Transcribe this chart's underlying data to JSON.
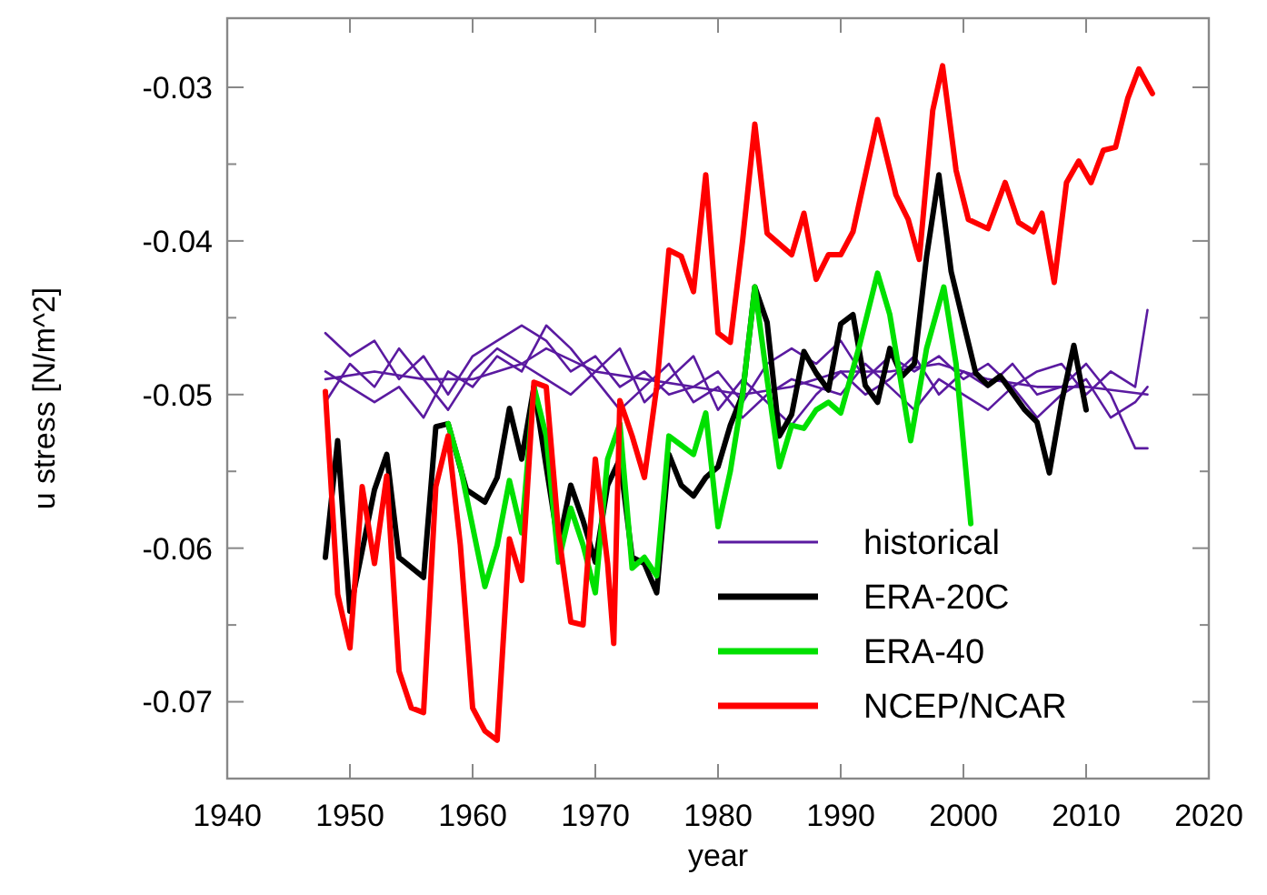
{
  "chart_data": {
    "type": "line",
    "xlabel": "year",
    "ylabel": "u stress [N/m^2]",
    "xlim": [
      1940,
      2020
    ],
    "xticks": [
      1940,
      1950,
      1960,
      1970,
      1980,
      1990,
      2000,
      2010,
      2020
    ],
    "ylim": [
      -0.075,
      -0.0255
    ],
    "yticks": [
      {
        "value": -0.075,
        "label": null
      },
      -0.07,
      {
        "value": -0.065,
        "label": null
      },
      -0.06,
      {
        "value": -0.055,
        "label": null
      },
      -0.05,
      {
        "value": -0.045,
        "label": null
      },
      -0.04,
      {
        "value": -0.035,
        "label": null
      },
      -0.03
    ],
    "grid": false,
    "legend": "bottom right",
    "series": [
      {
        "name": "historical",
        "color": "#5a1aa0",
        "x": [
          1948,
          1950,
          1952,
          1954,
          1956,
          1958,
          1960,
          1962,
          1964,
          1966,
          1968,
          1970,
          1972,
          1974,
          1976,
          1978,
          1980,
          1982,
          1984,
          1986,
          1988,
          1990,
          1992,
          1994,
          1996,
          1998,
          2000,
          2002,
          2004,
          2006,
          2008,
          2010,
          2012,
          2014,
          2015
        ],
        "values": [
          -0.046,
          -0.0475,
          -0.0465,
          -0.049,
          -0.0475,
          -0.05,
          -0.0475,
          -0.0465,
          -0.0455,
          -0.0465,
          -0.0485,
          -0.0475,
          -0.0495,
          -0.0485,
          -0.05,
          -0.0495,
          -0.0485,
          -0.0505,
          -0.048,
          -0.047,
          -0.048,
          -0.0465,
          -0.049,
          -0.0475,
          -0.0485,
          -0.0475,
          -0.049,
          -0.048,
          -0.0495,
          -0.0485,
          -0.048,
          -0.05,
          -0.0485,
          -0.0495,
          -0.0445
        ]
      },
      {
        "color": "#5a1aa0",
        "x": [
          1948,
          1950,
          1952,
          1954,
          1956,
          1958,
          1960,
          1962,
          1964,
          1966,
          1968,
          1970,
          1972,
          1974,
          1976,
          1978,
          1980,
          1982,
          1984,
          1986,
          1988,
          1990,
          1992,
          1994,
          1996,
          1998,
          2000,
          2002,
          2004,
          2006,
          2008,
          2010,
          2012,
          2014,
          2015
        ],
        "values": [
          -0.0485,
          -0.0495,
          -0.0505,
          -0.0495,
          -0.0515,
          -0.0485,
          -0.0495,
          -0.0475,
          -0.0485,
          -0.0455,
          -0.047,
          -0.049,
          -0.051,
          -0.0495,
          -0.048,
          -0.0505,
          -0.0495,
          -0.0515,
          -0.05,
          -0.049,
          -0.0495,
          -0.05,
          -0.048,
          -0.0495,
          -0.051,
          -0.049,
          -0.05,
          -0.051,
          -0.0495,
          -0.0515,
          -0.05,
          -0.049,
          -0.0515,
          -0.0505,
          -0.0495
        ]
      },
      {
        "color": "#5a1aa0",
        "x": [
          1948,
          1950,
          1952,
          1954,
          1956,
          1958,
          1960,
          1962,
          1964,
          1966,
          1968,
          1970,
          1972,
          1974,
          1976,
          1978,
          1980,
          1982,
          1984,
          1986,
          1988,
          1990,
          1992,
          1994,
          1996,
          1998,
          2000,
          2002,
          2004,
          2006,
          2008,
          2010,
          2012,
          2014,
          2015
        ],
        "values": [
          -0.0505,
          -0.048,
          -0.0495,
          -0.047,
          -0.049,
          -0.051,
          -0.0485,
          -0.047,
          -0.048,
          -0.049,
          -0.05,
          -0.0485,
          -0.047,
          -0.0505,
          -0.049,
          -0.0475,
          -0.051,
          -0.049,
          -0.0505,
          -0.052,
          -0.05,
          -0.0485,
          -0.05,
          -0.049,
          -0.0475,
          -0.05,
          -0.0485,
          -0.0495,
          -0.048,
          -0.05,
          -0.0495,
          -0.048,
          -0.05,
          -0.0535,
          -0.0535
        ]
      },
      {
        "color": "#5a1aa0",
        "x": [
          1948,
          1952,
          1956,
          1960,
          1964,
          1966,
          1970,
          1974,
          1978,
          1982,
          1986,
          1990,
          1994,
          1998,
          2002,
          2006,
          2010,
          2015
        ],
        "values": [
          -0.049,
          -0.0485,
          -0.049,
          -0.049,
          -0.048,
          -0.047,
          -0.0485,
          -0.049,
          -0.0495,
          -0.05,
          -0.0495,
          -0.0485,
          -0.0485,
          -0.048,
          -0.049,
          -0.0495,
          -0.0495,
          -0.05
        ]
      },
      {
        "name": "ERA-20C",
        "color": "#000000",
        "x": [
          1948,
          1949,
          1950,
          1952,
          1953,
          1954,
          1956,
          1957,
          1958,
          1959.5,
          1961,
          1962,
          1963,
          1964,
          1965,
          1966,
          1967,
          1968,
          1969,
          1970,
          1971,
          1972,
          1973,
          1974,
          1975,
          1976,
          1977,
          1978,
          1979,
          1980,
          1981,
          1982,
          1983,
          1984,
          1985,
          1986,
          1987,
          1988,
          1989,
          1990,
          1991,
          1992,
          1993,
          1994,
          1995,
          1996,
          1997,
          1998,
          1999,
          2000,
          2001,
          2002,
          2003,
          2004,
          2005,
          2006,
          2007,
          2008,
          2009,
          2010
        ],
        "values": [
          -0.0606,
          -0.053,
          -0.0641,
          -0.0562,
          -0.0539,
          -0.0606,
          -0.0619,
          -0.0521,
          -0.0519,
          -0.0562,
          -0.057,
          -0.0554,
          -0.0509,
          -0.0542,
          -0.0495,
          -0.0547,
          -0.0598,
          -0.0559,
          -0.0582,
          -0.0609,
          -0.0559,
          -0.0542,
          -0.0606,
          -0.061,
          -0.0629,
          -0.0539,
          -0.0559,
          -0.0566,
          -0.0554,
          -0.0547,
          -0.052,
          -0.05,
          -0.043,
          -0.0453,
          -0.0527,
          -0.0513,
          -0.0472,
          -0.0486,
          -0.0497,
          -0.0454,
          -0.0448,
          -0.0494,
          -0.0505,
          -0.047,
          -0.0488,
          -0.048,
          -0.041,
          -0.0357,
          -0.042,
          -0.0453,
          -0.0486,
          -0.0494,
          -0.0488,
          -0.0499,
          -0.051,
          -0.0518,
          -0.0551,
          -0.0505,
          -0.0468,
          -0.051
        ]
      },
      {
        "name": "ERA-40",
        "color": "#00e000",
        "x": [
          1958,
          1959,
          1960,
          1961,
          1962,
          1963,
          1964,
          1965,
          1966,
          1967,
          1968,
          1969,
          1970,
          1971,
          1972,
          1973,
          1974,
          1975,
          1976,
          1977,
          1978,
          1979,
          1980,
          1981,
          1982,
          1983,
          1984,
          1985,
          1986,
          1987,
          1988,
          1989,
          1990,
          1991.5,
          1993,
          1994,
          1995.7,
          1997,
          1998.4,
          1999.4,
          2000.6
        ],
        "values": [
          -0.0519,
          -0.0547,
          -0.0586,
          -0.0625,
          -0.0598,
          -0.0556,
          -0.059,
          -0.0495,
          -0.0527,
          -0.0609,
          -0.0574,
          -0.0598,
          -0.0629,
          -0.0542,
          -0.0519,
          -0.0613,
          -0.0606,
          -0.0618,
          -0.0527,
          -0.0533,
          -0.0539,
          -0.0512,
          -0.0586,
          -0.055,
          -0.05,
          -0.043,
          -0.049,
          -0.0547,
          -0.052,
          -0.0522,
          -0.051,
          -0.0505,
          -0.0512,
          -0.0469,
          -0.0421,
          -0.0448,
          -0.053,
          -0.047,
          -0.043,
          -0.048,
          -0.0584
        ]
      },
      {
        "name": "NCEP/NCAR",
        "color": "#ff0000",
        "x": [
          1948,
          1949,
          1950,
          1951,
          1952,
          1953,
          1954,
          1955,
          1956,
          1957,
          1958,
          1959,
          1960,
          1961,
          1962,
          1963,
          1964,
          1965,
          1966,
          1967,
          1968,
          1969,
          1970,
          1971,
          1971.5,
          1972,
          1973,
          1974,
          1975,
          1976,
          1977,
          1978,
          1979,
          1980,
          1981,
          1982,
          1983,
          1984,
          1986,
          1987,
          1988,
          1989,
          1990,
          1991,
          1993,
          1994.5,
          1995.5,
          1996.4,
          1997.5,
          1998.3,
          1999.4,
          2000.4,
          2002,
          2003.4,
          2004.5,
          2005.7,
          2006.4,
          2007.4,
          2008.4,
          2009.4,
          2010.4,
          2011.4,
          2012.4,
          2013.4,
          2014.3,
          2015.4
        ],
        "values": [
          -0.0498,
          -0.063,
          -0.0665,
          -0.056,
          -0.061,
          -0.0553,
          -0.068,
          -0.0704,
          -0.0707,
          -0.056,
          -0.0527,
          -0.0598,
          -0.0704,
          -0.0719,
          -0.0725,
          -0.0594,
          -0.0621,
          -0.0492,
          -0.0495,
          -0.059,
          -0.0648,
          -0.065,
          -0.0542,
          -0.061,
          -0.0662,
          -0.0504,
          -0.0527,
          -0.0554,
          -0.0495,
          -0.0406,
          -0.041,
          -0.0433,
          -0.0357,
          -0.046,
          -0.0466,
          -0.04,
          -0.0324,
          -0.0395,
          -0.0409,
          -0.0382,
          -0.0425,
          -0.0409,
          -0.0409,
          -0.0394,
          -0.0321,
          -0.037,
          -0.0386,
          -0.0412,
          -0.0315,
          -0.0286,
          -0.0354,
          -0.0386,
          -0.0392,
          -0.0362,
          -0.0388,
          -0.0394,
          -0.0382,
          -0.0427,
          -0.0362,
          -0.0348,
          -0.0362,
          -0.0341,
          -0.0339,
          -0.0307,
          -0.0288,
          -0.0304
        ]
      }
    ]
  }
}
